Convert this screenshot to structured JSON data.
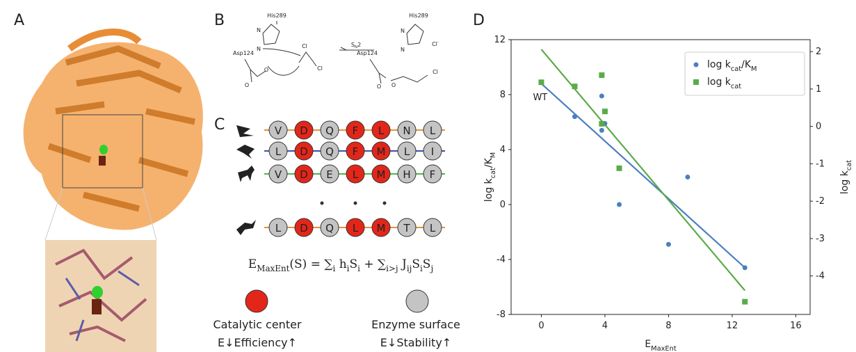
{
  "panels": [
    "A",
    "B",
    "C",
    "D"
  ],
  "reaction": {
    "labels": [
      "His289",
      "N",
      "N",
      "Asp124",
      "O",
      "O",
      "Cl",
      "Cl",
      "S_{N}2",
      "His289",
      "N",
      "N",
      "Cl^{-}",
      "Asp124",
      "O",
      "O",
      "Cl"
    ]
  },
  "alignment": {
    "center_color": "#e3261a",
    "surface_color": "#c4c4c4",
    "catalytic_positions": [
      1,
      3,
      4
    ],
    "rows": [
      {
        "residues": [
          "V",
          "D",
          "Q",
          "F",
          "L",
          "N",
          "L"
        ],
        "line": "#e8923a"
      },
      {
        "residues": [
          "L",
          "D",
          "Q",
          "F",
          "M",
          "L",
          "I"
        ],
        "line": "#3a4fb0"
      },
      {
        "residues": [
          "V",
          "D",
          "E",
          "L",
          "M",
          "H",
          "F"
        ],
        "line": "#4cb84a"
      },
      {
        "residues": [
          "L",
          "D",
          "Q",
          "L",
          "M",
          "T",
          "L"
        ],
        "line": "#e8923a"
      }
    ],
    "equation": "E_{MaxEnt}(S) = ∑_{i} h_{i}S_{i} + ∑_{i>j} J_{ij}S_{i}S_{j}"
  },
  "legend": {
    "center": "Catalytic center",
    "center_note": "E↓Efficiency↑",
    "surface": "Enzyme surface",
    "surface_note": "E↓Stability↑"
  },
  "chart_data": {
    "type": "scatter",
    "xlabel": "E_{MaxEnt}",
    "ylabel": "log k_{cat}/K_{M}",
    "y2label": "log k_{cat}",
    "xlim": [
      -1.9,
      16.9
    ],
    "xticks": [
      0,
      4,
      8,
      12,
      16
    ],
    "ylim": [
      -8,
      12
    ],
    "yticks": [
      -8,
      -4,
      0,
      4,
      8,
      12
    ],
    "y2lim": [
      -5.03,
      2.32
    ],
    "y2ticks": [
      -4,
      -3,
      -2,
      -1,
      0,
      1,
      2
    ],
    "legend": "upper right",
    "annotations": [
      "WT"
    ],
    "series": [
      {
        "name": "log k_{cat}/K_{M}",
        "color": "#4c7fc0",
        "marker": "circle",
        "x": [
          0,
          2.1,
          3.8,
          3.8,
          4.0,
          4.9,
          8.0,
          9.2,
          12.8
        ],
        "values": [
          8.9,
          6.4,
          7.9,
          5.4,
          5.9,
          0.0,
          -2.9,
          2.0,
          -4.6
        ],
        "fit": {
          "x": [
            0,
            12.8
          ],
          "values": [
            8.8,
            -4.6
          ]
        }
      },
      {
        "name": "log k_{cat}",
        "color": "#5aab48",
        "marker": "square",
        "axis": "y2",
        "x": [
          0,
          2.1,
          3.8,
          3.8,
          4.0,
          4.9,
          12.8
        ],
        "values": [
          1.18,
          1.07,
          1.37,
          0.07,
          0.4,
          -1.12,
          -4.69
        ],
        "fit": {
          "x": [
            0,
            12.8
          ],
          "values": [
            2.06,
            -4.39
          ]
        }
      }
    ]
  }
}
